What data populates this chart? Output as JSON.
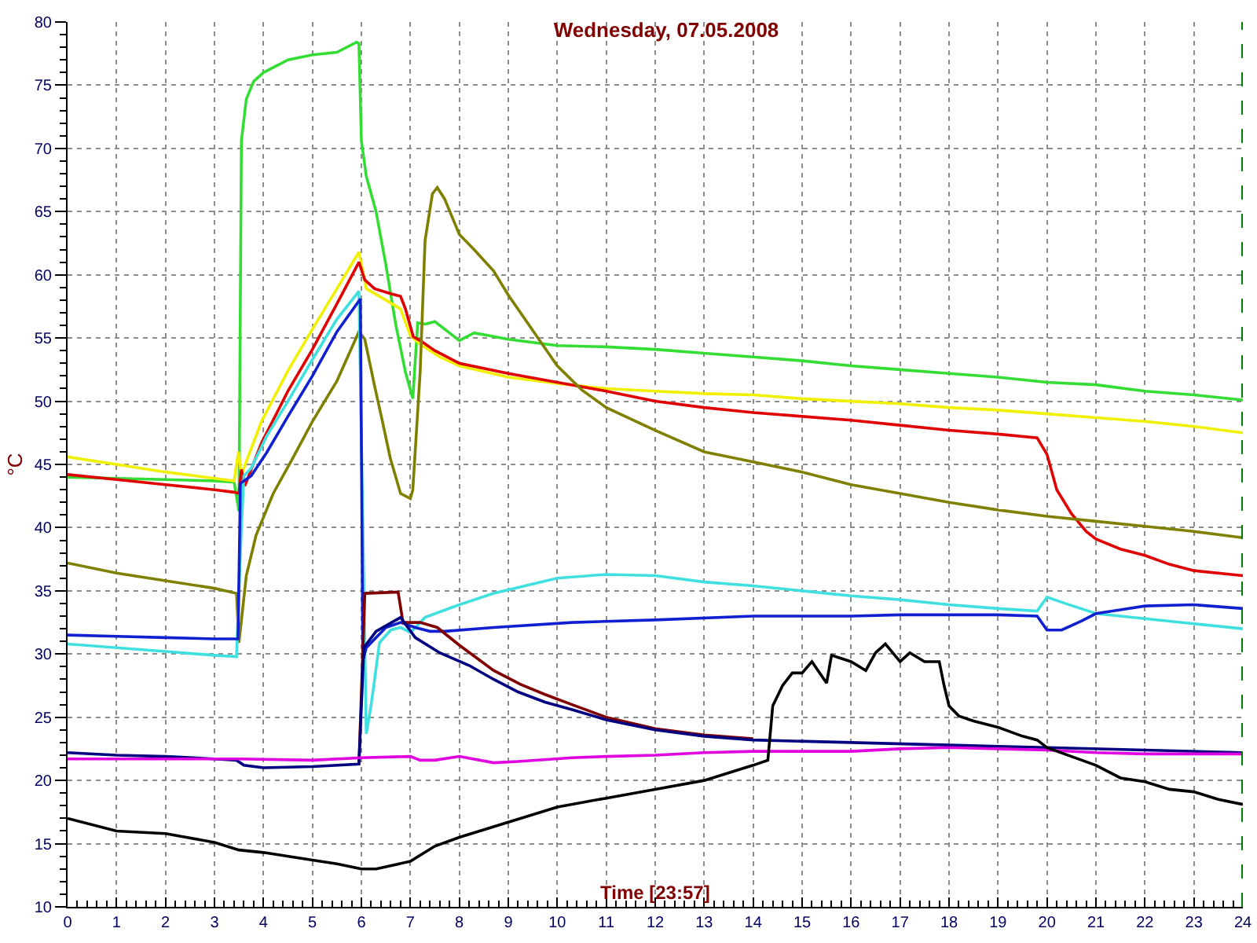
{
  "chart_data": {
    "type": "line",
    "title": "Wednesday, 07.05.2008",
    "xlabel": "Time [23:57]",
    "ylabel": "°C",
    "xlim": [
      0,
      24
    ],
    "xticks": [
      0,
      1,
      2,
      3,
      4,
      5,
      6,
      7,
      8,
      9,
      10,
      11,
      12,
      13,
      14,
      15,
      16,
      17,
      18,
      19,
      20,
      21,
      22,
      23,
      24
    ],
    "ylim": [
      10,
      80
    ],
    "yticks": [
      10,
      15,
      20,
      25,
      30,
      35,
      40,
      45,
      50,
      55,
      60,
      65,
      70,
      75,
      80
    ],
    "grid": true,
    "ref_lines": [
      {
        "axis": "x",
        "value": 24,
        "color": "#008000",
        "line_style": "dashed"
      }
    ],
    "series": [
      {
        "color": "#33dd33",
        "x": [
          0,
          1,
          2,
          3,
          3.4,
          3.5,
          3.55,
          3.65,
          3.8,
          4,
          4.5,
          5,
          5.5,
          5.9,
          5.95,
          6.0,
          6.1,
          6.3,
          6.5,
          6.7,
          6.9,
          7.05,
          7.15,
          7.3,
          7.5,
          7.8,
          8,
          8.3,
          8.6,
          9,
          10,
          11,
          12,
          13,
          14,
          15,
          16,
          17,
          18,
          19,
          20,
          21,
          22,
          23,
          24
        ],
        "values": [
          44.0,
          43.9,
          43.8,
          43.7,
          43.6,
          41.3,
          70.6,
          73.9,
          75.3,
          76.0,
          77.0,
          77.4,
          77.6,
          78.4,
          78.3,
          70.6,
          67.8,
          65.0,
          60.8,
          56.1,
          52.3,
          50.2,
          56.2,
          56.1,
          56.3,
          55.4,
          54.8,
          55.4,
          55.2,
          54.9,
          54.4,
          54.3,
          54.1,
          53.8,
          53.5,
          53.2,
          52.8,
          52.5,
          52.2,
          51.9,
          51.5,
          51.3,
          50.8,
          50.5,
          50.1
        ]
      },
      {
        "color": "#f0f000",
        "x": [
          0,
          1,
          2,
          3,
          3.4,
          3.49,
          3.55,
          3.96,
          4.5,
          5.0,
          5.5,
          5.95,
          6.1,
          6.5,
          6.8,
          7.0,
          7.2,
          7.6,
          8,
          9,
          10,
          11,
          12,
          13,
          14,
          15,
          16,
          17,
          18,
          19,
          20,
          21,
          22,
          23,
          24
        ],
        "values": [
          45.6,
          45.0,
          44.4,
          43.9,
          43.7,
          46.0,
          44.2,
          48.4,
          52.4,
          55.7,
          58.9,
          61.8,
          58.9,
          58.0,
          57.3,
          55.2,
          54.5,
          53.5,
          52.8,
          51.9,
          51.4,
          51.0,
          50.8,
          50.6,
          50.5,
          50.2,
          50.0,
          49.8,
          49.5,
          49.3,
          49.0,
          48.7,
          48.4,
          48.0,
          47.5
        ]
      },
      {
        "color": "#e00000",
        "x": [
          0,
          1,
          2,
          3,
          3.4,
          3.5,
          3.55,
          3.62,
          3.96,
          4.5,
          5.0,
          5.5,
          5.95,
          6.07,
          6.27,
          6.6,
          6.8,
          6.9,
          7.06,
          7.2,
          7.5,
          8,
          9,
          10,
          11,
          12,
          13,
          14,
          15,
          16,
          17,
          18,
          19,
          19.8,
          20.0,
          20.2,
          20.5,
          20.8,
          21,
          21.5,
          22,
          22.5,
          23,
          24
        ],
        "values": [
          44.2,
          43.8,
          43.4,
          43.0,
          42.8,
          42.7,
          44.6,
          43.3,
          46.7,
          50.8,
          54.1,
          57.7,
          61.0,
          59.6,
          58.9,
          58.5,
          58.3,
          57.3,
          55.1,
          54.8,
          54.0,
          53.0,
          52.2,
          51.5,
          50.8,
          50.0,
          49.5,
          49.1,
          48.8,
          48.5,
          48.1,
          47.7,
          47.4,
          47.1,
          45.8,
          43.0,
          41.1,
          39.7,
          39.1,
          38.3,
          37.8,
          37.1,
          36.6,
          36.2
        ]
      },
      {
        "color": "#808000",
        "x": [
          0,
          1,
          2,
          3,
          3.45,
          3.5,
          3.65,
          3.85,
          4.2,
          4.6,
          5.0,
          5.5,
          5.95,
          6.07,
          6.27,
          6.43,
          6.59,
          6.8,
          7.0,
          7.05,
          7.2,
          7.3,
          7.45,
          7.55,
          7.7,
          8,
          8.3,
          8.7,
          9,
          9.5,
          10,
          10.5,
          11,
          12,
          13,
          14,
          15,
          16,
          17,
          18,
          19,
          20,
          21,
          22,
          23,
          24
        ],
        "values": [
          37.2,
          36.4,
          35.8,
          35.2,
          34.8,
          30.9,
          36.2,
          39.4,
          42.7,
          45.5,
          48.4,
          51.6,
          55.5,
          54.9,
          51.2,
          48.4,
          45.5,
          42.7,
          42.3,
          43.0,
          52.3,
          62.7,
          66.4,
          66.9,
          66.0,
          63.2,
          62.0,
          60.3,
          58.4,
          55.6,
          52.8,
          50.9,
          49.5,
          47.7,
          46.0,
          45.2,
          44.4,
          43.4,
          42.7,
          42.0,
          41.4,
          40.9,
          40.5,
          40.1,
          39.7,
          39.2
        ]
      },
      {
        "color": "#40e0e0",
        "x": [
          0,
          1,
          2,
          3,
          3.45,
          3.55,
          3.6,
          3.75,
          4.06,
          4.5,
          5.0,
          5.5,
          5.95,
          6.1,
          6.2,
          6.27,
          6.37,
          6.6,
          6.8,
          7.0,
          7.3,
          8.0,
          8.7,
          10,
          11,
          12,
          13,
          14,
          15,
          16,
          17,
          18,
          19,
          19.8,
          20.0,
          20.3,
          21,
          22,
          23,
          24
        ],
        "values": [
          30.8,
          30.5,
          30.2,
          29.9,
          29.8,
          40.0,
          44.1,
          44.7,
          47.2,
          50.0,
          53.3,
          56.5,
          58.7,
          23.7,
          26.0,
          28.0,
          30.9,
          31.9,
          32.1,
          31.7,
          32.9,
          33.9,
          34.8,
          36.0,
          36.3,
          36.2,
          35.7,
          35.4,
          35.0,
          34.6,
          34.3,
          33.9,
          33.6,
          33.4,
          34.5,
          34.1,
          33.2,
          32.8,
          32.4,
          32.0
        ]
      },
      {
        "color": "#1020d0",
        "x": [
          0,
          1,
          2,
          3,
          3.48,
          3.53,
          3.75,
          4.06,
          4.5,
          5.0,
          5.5,
          5.98,
          6.03,
          6.1,
          6.5,
          6.8,
          7.1,
          7.4,
          7.7,
          8.7,
          10.3,
          12,
          14,
          15,
          16,
          17,
          18,
          19,
          19.8,
          20.0,
          20.3,
          20.7,
          21,
          21.5,
          22,
          23,
          24
        ],
        "values": [
          31.5,
          31.4,
          31.3,
          31.2,
          31.2,
          43.5,
          44.1,
          45.9,
          48.8,
          52.0,
          55.5,
          58.1,
          29.5,
          30.5,
          32.1,
          32.5,
          32.1,
          31.8,
          31.8,
          32.1,
          32.5,
          32.7,
          33.0,
          33.0,
          33.0,
          33.1,
          33.1,
          33.1,
          33.0,
          31.9,
          31.9,
          32.6,
          33.2,
          33.5,
          33.8,
          33.9,
          33.6
        ]
      },
      {
        "color": "#800000",
        "x": [
          5.95,
          6.07,
          6.75,
          6.85,
          7.2,
          7.55,
          8.0,
          8.7,
          9.25,
          9.75,
          10.3,
          11,
          12,
          13,
          14
        ],
        "values": [
          21.3,
          34.8,
          34.9,
          32.5,
          32.5,
          32.1,
          30.7,
          28.7,
          27.6,
          26.8,
          26.0,
          25.0,
          24.1,
          23.6,
          23.3
        ]
      },
      {
        "color": "#000080",
        "x": [
          0,
          1,
          2,
          3,
          3.45,
          3.6,
          4,
          5,
          5.95,
          6.05,
          6.3,
          6.8,
          7.1,
          7.6,
          8.2,
          8.7,
          9.2,
          9.75,
          10.3,
          11,
          12,
          13,
          14,
          16,
          18,
          20,
          22,
          24
        ],
        "values": [
          22.2,
          22.0,
          21.9,
          21.7,
          21.6,
          21.2,
          21.0,
          21.1,
          21.3,
          30.5,
          31.8,
          32.9,
          31.3,
          30.1,
          29.1,
          28.0,
          27.0,
          26.2,
          25.6,
          24.8,
          24.0,
          23.5,
          23.2,
          23.0,
          22.8,
          22.6,
          22.4,
          22.2
        ]
      },
      {
        "color": "#e000e0",
        "x": [
          0,
          2,
          3.5,
          5,
          6,
          7,
          7.2,
          7.5,
          8,
          8.7,
          9.2,
          10.3,
          11,
          12,
          13,
          14,
          16,
          17,
          18,
          20,
          21,
          22,
          24
        ],
        "values": [
          21.7,
          21.7,
          21.7,
          21.6,
          21.8,
          21.9,
          21.6,
          21.6,
          21.9,
          21.4,
          21.5,
          21.8,
          21.9,
          22.0,
          22.2,
          22.3,
          22.3,
          22.5,
          22.6,
          22.4,
          22.2,
          22.1,
          22.1
        ]
      },
      {
        "color": "#000000",
        "x": [
          0,
          1,
          2,
          3,
          3.5,
          4,
          5,
          5.5,
          6,
          6.3,
          7,
          7.5,
          8,
          9,
          10,
          11,
          12,
          13,
          14,
          14.3,
          14.4,
          14.6,
          14.8,
          15,
          15.2,
          15.5,
          15.6,
          16,
          16.3,
          16.5,
          16.7,
          17,
          17.2,
          17.5,
          17.8,
          17.9,
          18,
          18.2,
          18.5,
          19,
          19.5,
          19.8,
          20,
          20.5,
          21,
          21.5,
          22,
          22.5,
          23,
          23.5,
          24
        ],
        "values": [
          17.0,
          16.0,
          15.8,
          15.1,
          14.5,
          14.3,
          13.7,
          13.4,
          13.0,
          13.0,
          13.6,
          14.8,
          15.5,
          16.7,
          17.9,
          18.6,
          19.3,
          20.0,
          21.2,
          21.6,
          25.9,
          27.5,
          28.5,
          28.5,
          29.4,
          27.7,
          29.9,
          29.4,
          28.7,
          30.1,
          30.8,
          29.4,
          30.1,
          29.4,
          29.4,
          27.5,
          25.9,
          25.1,
          24.7,
          24.2,
          23.5,
          23.2,
          22.6,
          21.9,
          21.2,
          20.2,
          19.9,
          19.3,
          19.1,
          18.5,
          18.1
        ]
      }
    ]
  }
}
